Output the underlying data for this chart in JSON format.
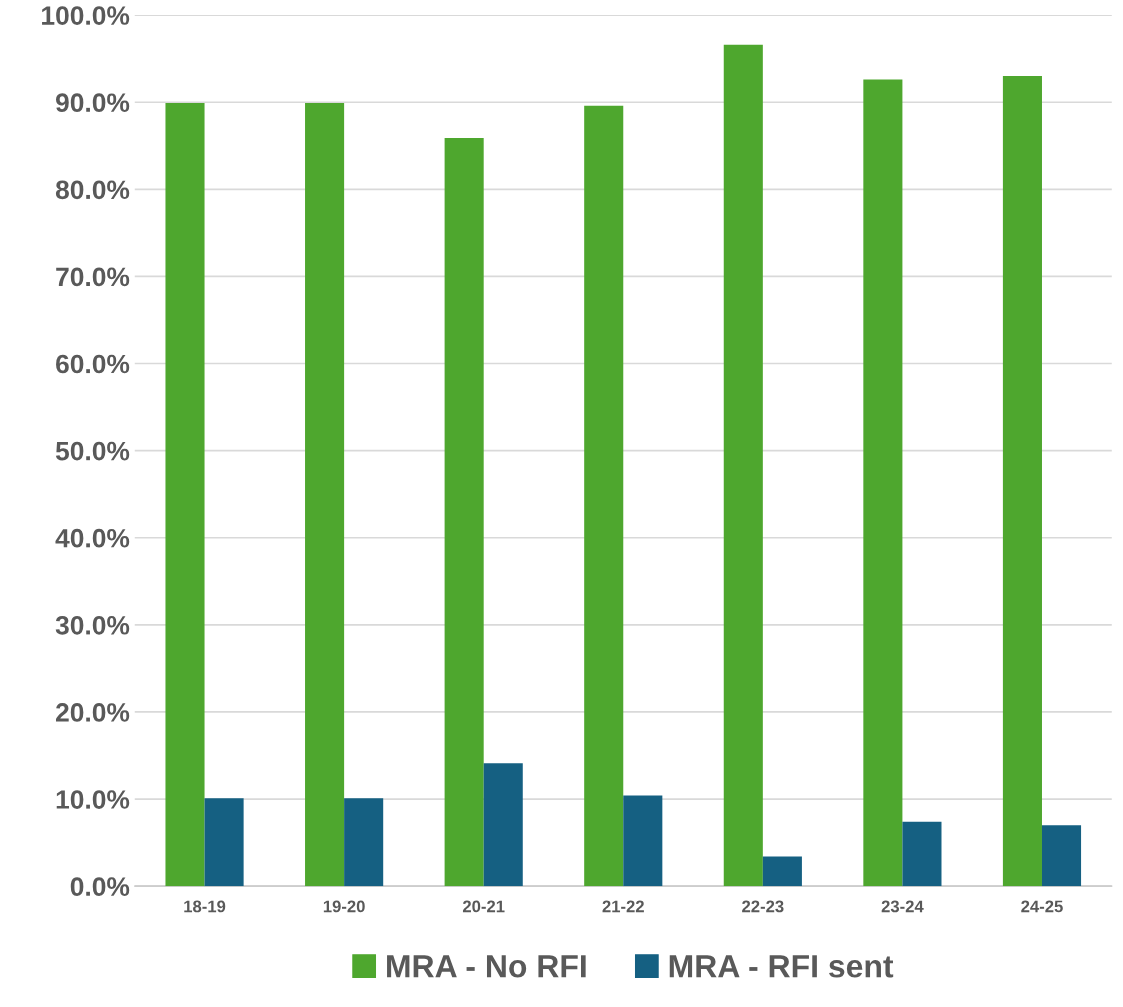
{
  "chart_data": {
    "type": "bar",
    "categories": [
      "18-19",
      "19-20",
      "20-21",
      "21-22",
      "22-23",
      "23-24",
      "24-25"
    ],
    "series": [
      {
        "name": "MRA - No RFI",
        "color": "#4ea72e",
        "values": [
          89.9,
          89.9,
          85.9,
          89.6,
          96.6,
          92.6,
          93.0
        ]
      },
      {
        "name": "MRA - RFI sent",
        "color": "#156082",
        "values": [
          10.1,
          10.1,
          14.1,
          10.4,
          3.4,
          7.4,
          7.0
        ]
      }
    ],
    "ylim": [
      0,
      100
    ],
    "yticks": [
      {
        "value": 0,
        "label": "0.0%"
      },
      {
        "value": 10,
        "label": "10.0%"
      },
      {
        "value": 20,
        "label": "20.0%"
      },
      {
        "value": 30,
        "label": "30.0%"
      },
      {
        "value": 40,
        "label": "40.0%"
      },
      {
        "value": 50,
        "label": "50.0%"
      },
      {
        "value": 60,
        "label": "60.0%"
      },
      {
        "value": 70,
        "label": "70.0%"
      },
      {
        "value": 80,
        "label": "80.0%"
      },
      {
        "value": 90,
        "label": "90.0%"
      },
      {
        "value": 100,
        "label": "100.0%"
      }
    ],
    "grid": "y",
    "legend": "bottom"
  }
}
